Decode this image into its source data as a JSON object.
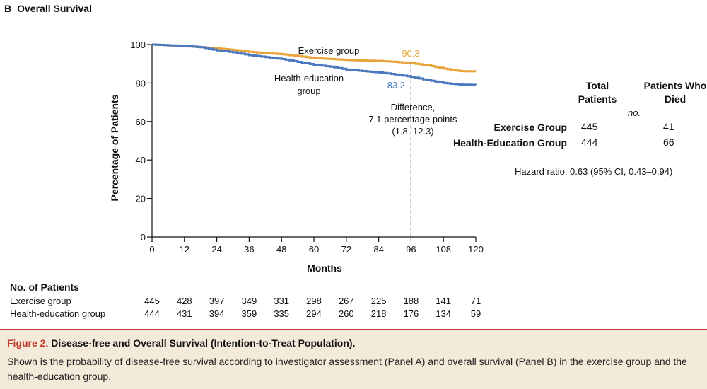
{
  "panel": {
    "letter": "B",
    "title": "Overall Survival"
  },
  "chart_data": {
    "type": "line",
    "title": "Overall Survival",
    "xlabel": "Months",
    "ylabel": "Percentage of Patients",
    "xlim": [
      0,
      120
    ],
    "ylim": [
      0,
      100
    ],
    "xticks": [
      0,
      12,
      24,
      36,
      48,
      60,
      72,
      84,
      96,
      108,
      120
    ],
    "yticks": [
      0,
      20,
      40,
      60,
      80,
      100
    ],
    "xtick_labels": [
      "0",
      "12",
      "24",
      "36",
      "48",
      "60",
      "72",
      "84",
      "96",
      "108",
      "120"
    ],
    "ytick_labels": [
      "0",
      "20",
      "40",
      "60",
      "80",
      "100"
    ],
    "series": [
      {
        "name": "Exercise group",
        "color": "#e8a43a",
        "x": [
          0,
          6,
          12,
          18,
          24,
          30,
          36,
          42,
          48,
          54,
          60,
          66,
          72,
          78,
          84,
          90,
          96,
          102,
          108,
          114,
          120
        ],
        "y": [
          100,
          99.6,
          99.2,
          98.6,
          98,
          97.2,
          96.2,
          95.6,
          95,
          94,
          93,
          92.5,
          92,
          91.7,
          91.5,
          91,
          90.3,
          89.2,
          87.5,
          86.2,
          86
        ]
      },
      {
        "name": "Health-education group",
        "color": "#4a78c0",
        "x": [
          0,
          6,
          12,
          18,
          24,
          30,
          36,
          42,
          48,
          54,
          60,
          66,
          72,
          78,
          84,
          90,
          96,
          102,
          108,
          114,
          120
        ],
        "y": [
          100,
          99.6,
          99.4,
          98.6,
          97,
          96,
          94.5,
          93.5,
          92.5,
          91,
          89.5,
          88.5,
          87,
          86.2,
          85.5,
          84.5,
          83.2,
          81.5,
          80,
          79.2,
          79
        ]
      }
    ],
    "annotations": {
      "exercise_label": "Exercise group",
      "health_label_1": "Health-education",
      "health_label_2": "group",
      "exercise_value": "90.3",
      "health_value": "83.2",
      "diff_1": "Difference,",
      "diff_2": "7.1 percentage points",
      "diff_3": "(1.8–12.3)",
      "marker_x": 96
    }
  },
  "stats_table": {
    "header_total": "Total Patients",
    "header_died": "Patients Who Died",
    "unit": "no.",
    "rows": [
      {
        "label": "Exercise Group",
        "total": "445",
        "died": "41"
      },
      {
        "label": "Health-Education Group",
        "total": "444",
        "died": "66"
      }
    ],
    "hazard_ratio": "Hazard ratio, 0.63 (95% CI, 0.43–0.94)"
  },
  "risk_table": {
    "title": "No. of Patients",
    "rows": [
      {
        "label": "Exercise group",
        "values": [
          "445",
          "428",
          "397",
          "349",
          "331",
          "298",
          "267",
          "225",
          "188",
          "141",
          "71"
        ]
      },
      {
        "label": "Health-education group",
        "values": [
          "444",
          "431",
          "394",
          "359",
          "335",
          "294",
          "260",
          "218",
          "176",
          "134",
          "59"
        ]
      }
    ]
  },
  "caption": {
    "figure_label": "Figure 2.",
    "title": "Disease-free and Overall Survival (Intention-to-Treat Population).",
    "body": "Shown is the probability of disease-free survival according to investigator assessment (Panel A) and overall survival (Panel B) in the exercise group and the health-education group."
  }
}
